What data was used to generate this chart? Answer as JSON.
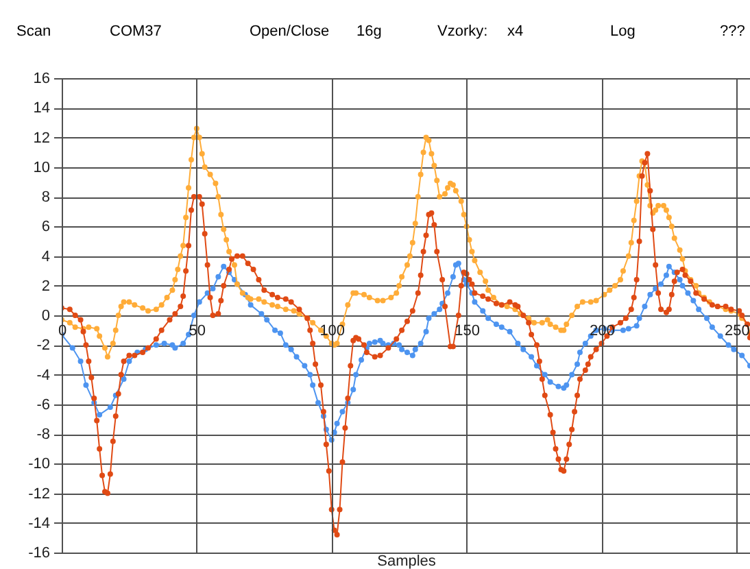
{
  "chart_data": {
    "type": "line",
    "xlabel": "Samples",
    "annotations": [
      "Scan",
      "COM37",
      "Open/Close",
      "16g",
      "Vzorky:",
      "x4",
      "Log",
      "???"
    ],
    "xlim": [
      0,
      255
    ],
    "xticks": [
      0,
      50,
      100,
      150,
      200,
      250
    ],
    "ylim": [
      -16,
      16
    ],
    "yticks": [
      -16,
      -14,
      -12,
      -10,
      -8,
      -6,
      -4,
      -2,
      0,
      2,
      4,
      6,
      8,
      10,
      12,
      14,
      16
    ],
    "grid": true,
    "marker": "circle",
    "series": [
      {
        "color": "#4d94f0",
        "x": [
          0,
          4,
          7,
          9,
          12,
          14,
          18,
          20,
          23,
          25,
          28,
          31,
          35,
          38,
          41,
          42,
          45,
          47,
          49,
          51,
          54,
          56,
          58,
          60,
          62,
          64,
          65,
          68,
          70,
          74,
          76,
          79,
          81,
          83,
          85,
          87,
          90,
          92,
          93,
          95,
          97,
          98,
          100,
          101,
          102,
          104,
          106,
          108,
          109,
          111,
          113,
          114,
          116,
          118,
          119,
          121,
          123,
          125,
          126,
          128,
          130,
          131,
          133,
          135,
          136,
          138,
          140,
          141,
          143,
          145,
          146,
          147,
          149,
          150,
          152,
          153,
          156,
          158,
          161,
          163,
          166,
          169,
          171,
          174,
          176,
          179,
          181,
          184,
          186,
          187,
          189,
          191,
          192,
          194,
          196,
          198,
          201,
          204,
          208,
          210,
          213,
          214,
          216,
          218,
          220,
          222,
          224,
          225,
          227,
          229,
          230,
          232,
          234,
          236,
          239,
          241,
          244,
          247,
          249,
          252,
          255
        ],
        "values": [
          -1.3,
          -2.2,
          -3.1,
          -4.7,
          -5.9,
          -6.7,
          -6.2,
          -5.4,
          -4.3,
          -3.1,
          -2.5,
          -2.3,
          -2.0,
          -1.9,
          -2.0,
          -2.2,
          -1.9,
          -1.3,
          0.0,
          0.9,
          1.5,
          1.8,
          2.6,
          3.3,
          2.9,
          2.4,
          2.1,
          1.4,
          0.7,
          0.1,
          -0.3,
          -1.0,
          -1.2,
          -2.0,
          -2.3,
          -2.8,
          -3.4,
          -4.0,
          -4.7,
          -5.9,
          -6.8,
          -7.7,
          -8.4,
          -7.9,
          -7.3,
          -6.5,
          -5.9,
          -5.0,
          -4.0,
          -3.0,
          -2.2,
          -1.9,
          -1.8,
          -1.7,
          -1.9,
          -2.0,
          -1.9,
          -2.0,
          -2.3,
          -2.5,
          -2.7,
          -2.3,
          -1.9,
          -1.1,
          -0.2,
          0.1,
          0.4,
          0.8,
          1.5,
          2.6,
          3.4,
          3.5,
          2.4,
          2.1,
          1.5,
          0.9,
          0.3,
          -0.2,
          -0.6,
          -0.8,
          -1.1,
          -1.9,
          -2.3,
          -2.8,
          -3.4,
          -4.0,
          -4.5,
          -4.8,
          -4.9,
          -4.7,
          -4.0,
          -3.3,
          -2.5,
          -1.9,
          -1.4,
          -1.0,
          -0.9,
          -1.0,
          -1.0,
          -0.9,
          -0.7,
          -0.2,
          0.6,
          1.4,
          1.8,
          2.1,
          2.7,
          3.3,
          2.9,
          2.4,
          2.0,
          1.5,
          1.0,
          0.4,
          -0.2,
          -0.8,
          -1.4,
          -2.0,
          -2.3,
          -2.7,
          -3.4
        ]
      },
      {
        "color": "#ffac38",
        "x": [
          0,
          3,
          5,
          8,
          10,
          13,
          14,
          16,
          17,
          19,
          20,
          21,
          22,
          23,
          25,
          27,
          30,
          32,
          35,
          37,
          39,
          41,
          42,
          43,
          44,
          45,
          46,
          47,
          48,
          49,
          50,
          51,
          52,
          53,
          55,
          57,
          58,
          59,
          60,
          61,
          62,
          64,
          65,
          67,
          69,
          70,
          73,
          75,
          78,
          80,
          83,
          86,
          88,
          91,
          93,
          96,
          98,
          100,
          101,
          102,
          104,
          106,
          108,
          109,
          112,
          114,
          117,
          119,
          122,
          124,
          125,
          126,
          128,
          129,
          130,
          131,
          132,
          133,
          134,
          135,
          136,
          137,
          138,
          139,
          140,
          142,
          143,
          144,
          145,
          146,
          148,
          149,
          150,
          151,
          152,
          153,
          155,
          157,
          158,
          160,
          163,
          165,
          168,
          170,
          173,
          175,
          178,
          180,
          181,
          183,
          185,
          186,
          187,
          189,
          191,
          193,
          196,
          198,
          201,
          203,
          205,
          207,
          208,
          210,
          211,
          212,
          213,
          214,
          215,
          216,
          217,
          218,
          219,
          220,
          221,
          223,
          224,
          225,
          226,
          227,
          229,
          230,
          231,
          233,
          235,
          236,
          238,
          240,
          243,
          246,
          248,
          251,
          252,
          254,
          255
        ],
        "values": [
          -0.3,
          -0.5,
          -0.8,
          -0.9,
          -0.8,
          -0.9,
          -1.4,
          -2.2,
          -2.8,
          -1.9,
          -1.0,
          0.0,
          0.6,
          0.9,
          0.9,
          0.7,
          0.5,
          0.3,
          0.4,
          0.7,
          1.2,
          1.7,
          2.4,
          3.1,
          4.0,
          4.7,
          6.6,
          8.6,
          10.5,
          12.0,
          12.6,
          12.0,
          10.9,
          10.0,
          9.5,
          8.9,
          8.0,
          6.8,
          5.8,
          5.1,
          4.3,
          3.4,
          2.1,
          1.5,
          1.2,
          1.1,
          1.1,
          0.9,
          0.7,
          0.6,
          0.4,
          0.3,
          0.1,
          -0.2,
          -0.5,
          -1.0,
          -1.4,
          -1.9,
          -2.0,
          -1.9,
          -0.6,
          0.7,
          1.5,
          1.5,
          1.4,
          1.2,
          1.0,
          1.0,
          1.2,
          1.5,
          2.0,
          2.6,
          3.4,
          4.0,
          4.9,
          6.2,
          8.0,
          9.5,
          11.0,
          12.0,
          11.8,
          10.9,
          10.1,
          9.1,
          8.0,
          8.2,
          8.6,
          8.9,
          8.8,
          8.4,
          7.7,
          6.8,
          6.0,
          5.1,
          4.3,
          3.7,
          2.9,
          2.3,
          1.7,
          1.2,
          0.7,
          0.6,
          0.4,
          0.1,
          -0.2,
          -0.5,
          -0.5,
          -0.3,
          -0.6,
          -0.8,
          -1.0,
          -1.0,
          -0.6,
          0.0,
          0.6,
          0.9,
          0.9,
          1.0,
          1.4,
          1.7,
          2.0,
          2.4,
          3.0,
          4.0,
          4.9,
          6.4,
          7.7,
          9.4,
          10.4,
          10.3,
          8.8,
          7.4,
          6.9,
          7.1,
          7.4,
          7.4,
          7.1,
          6.6,
          6.0,
          5.2,
          4.4,
          3.8,
          3.0,
          2.4,
          2.0,
          1.5,
          1.2,
          0.9,
          0.6,
          0.4,
          0.3,
          0.1,
          -0.2,
          -0.6,
          -1.2
        ]
      },
      {
        "color": "#e04a14",
        "x": [
          0,
          3,
          5,
          7,
          8,
          9,
          10,
          11,
          12,
          13,
          14,
          15,
          16,
          17,
          18,
          19,
          20,
          21,
          22,
          23,
          25,
          27,
          30,
          32,
          35,
          37,
          40,
          42,
          44,
          45,
          46,
          47,
          48,
          49,
          51,
          52,
          53,
          54,
          55,
          56,
          58,
          59,
          60,
          62,
          63,
          65,
          67,
          69,
          71,
          73,
          75,
          78,
          80,
          83,
          85,
          88,
          91,
          92,
          93,
          94,
          96,
          97,
          98,
          99,
          100,
          101,
          102,
          103,
          104,
          105,
          106,
          107,
          108,
          109,
          110,
          112,
          113,
          116,
          118,
          121,
          124,
          126,
          128,
          130,
          132,
          133,
          134,
          135,
          136,
          137,
          138,
          139,
          141,
          142,
          144,
          145,
          147,
          148,
          149,
          150,
          151,
          152,
          153,
          156,
          158,
          161,
          163,
          166,
          168,
          169,
          171,
          173,
          174,
          176,
          177,
          178,
          179,
          181,
          182,
          183,
          184,
          185,
          186,
          187,
          188,
          189,
          190,
          191,
          192,
          194,
          195,
          196,
          198,
          200,
          202,
          204,
          207,
          209,
          211,
          212,
          213,
          214,
          215,
          216,
          217,
          218,
          219,
          220,
          221,
          222,
          224,
          225,
          226,
          227,
          228,
          230,
          231,
          233,
          235,
          238,
          241,
          243,
          246,
          248,
          251,
          252,
          254,
          255
        ],
        "values": [
          0.5,
          0.4,
          0.0,
          -0.3,
          -1.1,
          -2.0,
          -3.1,
          -4.2,
          -5.6,
          -7.1,
          -9.0,
          -10.8,
          -11.9,
          -12.0,
          -10.7,
          -8.5,
          -6.8,
          -5.3,
          -4.0,
          -3.1,
          -2.7,
          -2.7,
          -2.5,
          -2.2,
          -1.6,
          -1.0,
          -0.3,
          0.1,
          0.6,
          1.3,
          3.0,
          4.7,
          7.1,
          8.0,
          8.0,
          7.5,
          5.5,
          3.4,
          1.2,
          0.0,
          0.1,
          1.0,
          2.0,
          3.1,
          3.8,
          4.0,
          4.0,
          3.5,
          3.1,
          2.4,
          1.7,
          1.4,
          1.2,
          1.1,
          0.9,
          0.4,
          -0.2,
          -1.0,
          -1.9,
          -3.3,
          -4.7,
          -6.5,
          -8.7,
          -10.5,
          -13.1,
          -14.5,
          -14.8,
          -13.1,
          -9.9,
          -7.6,
          -5.6,
          -3.4,
          -1.7,
          -1.5,
          -1.6,
          -2.0,
          -2.5,
          -2.8,
          -2.7,
          -2.2,
          -1.6,
          -1.0,
          -0.4,
          0.3,
          1.5,
          2.7,
          4.3,
          5.4,
          6.8,
          6.9,
          6.1,
          4.3,
          2.4,
          0.6,
          -2.1,
          -2.1,
          0.0,
          2.0,
          2.9,
          2.8,
          2.4,
          2.1,
          1.5,
          1.3,
          1.1,
          0.8,
          0.7,
          0.9,
          0.7,
          0.6,
          0.0,
          -0.5,
          -1.3,
          -2.0,
          -3.1,
          -4.3,
          -5.4,
          -6.7,
          -7.9,
          -9.0,
          -9.7,
          -10.4,
          -10.5,
          -9.7,
          -8.7,
          -7.7,
          -6.5,
          -5.4,
          -4.3,
          -3.7,
          -3.3,
          -2.8,
          -2.3,
          -1.9,
          -1.4,
          -0.8,
          -0.5,
          -0.2,
          0.4,
          1.2,
          2.4,
          5.0,
          9.4,
          10.3,
          10.9,
          8.4,
          5.8,
          3.4,
          1.5,
          0.4,
          0.2,
          0.4,
          1.4,
          2.3,
          2.9,
          3.1,
          2.7,
          2.3,
          1.5,
          1.1,
          0.7,
          0.6,
          0.6,
          0.4,
          0.3,
          0.0,
          -0.6,
          -1.5
        ]
      }
    ]
  }
}
